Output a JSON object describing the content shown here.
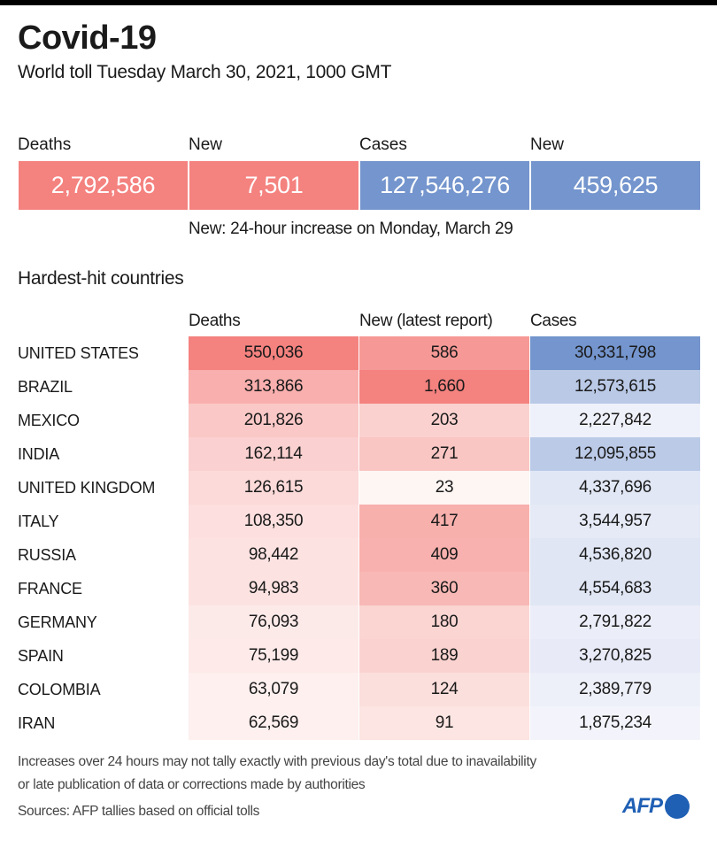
{
  "header": {
    "title": "Covid-19",
    "subtitle": "World toll Tuesday March 30, 2021, 1000 GMT"
  },
  "summary": {
    "items": [
      {
        "label": "Deaths",
        "value": "2,792,586",
        "color": "#f4827f"
      },
      {
        "label": "New",
        "value": "7,501",
        "color": "#f4827f"
      },
      {
        "label": "Cases",
        "value": "127,546,276",
        "color": "#7495cd"
      },
      {
        "label": "New",
        "value": "459,625",
        "color": "#7495cd"
      }
    ],
    "note": "New: 24-hour increase on Monday, March 29"
  },
  "section_title": "Hardest-hit countries",
  "chart_data": {
    "type": "table",
    "title": "Hardest-hit countries",
    "columns": [
      "Deaths",
      "New (latest report)",
      "Cases"
    ],
    "rows": [
      {
        "country": "UNITED STATES",
        "deaths": 550036,
        "new": 586,
        "cases": 30331798
      },
      {
        "country": "BRAZIL",
        "deaths": 313866,
        "new": 1660,
        "cases": 12573615
      },
      {
        "country": "MEXICO",
        "deaths": 201826,
        "new": 203,
        "cases": 2227842
      },
      {
        "country": "INDIA",
        "deaths": 162114,
        "new": 271,
        "cases": 12095855
      },
      {
        "country": "UNITED KINGDOM",
        "deaths": 126615,
        "new": 23,
        "cases": 4337696
      },
      {
        "country": "ITALY",
        "deaths": 108350,
        "new": 417,
        "cases": 3544957
      },
      {
        "country": "RUSSIA",
        "deaths": 98442,
        "new": 409,
        "cases": 4536820
      },
      {
        "country": "FRANCE",
        "deaths": 94983,
        "new": 360,
        "cases": 4554683
      },
      {
        "country": "GERMANY",
        "deaths": 76093,
        "new": 180,
        "cases": 2791822
      },
      {
        "country": "SPAIN",
        "deaths": 75199,
        "new": 189,
        "cases": 3270825
      },
      {
        "country": "COLOMBIA",
        "deaths": 63079,
        "new": 124,
        "cases": 2389779
      },
      {
        "country": "IRAN",
        "deaths": 62569,
        "new": 91,
        "cases": 1875234
      }
    ],
    "color_scale": {
      "deaths": {
        "high": "#f4827f",
        "low": "#fdf0ef"
      },
      "new": {
        "high": "#f4827f",
        "low": "#fdf6f3"
      },
      "cases": {
        "high": "#7495cd",
        "low": "#f3f4fb"
      }
    }
  },
  "footer": {
    "note_line1": "Increases over 24 hours may not tally exactly with previous day's total due to inavailability",
    "note_line2": "or late publication of data or corrections made by authorities",
    "sources": "Sources: AFP tallies based on official tolls",
    "logo_text": "AFP"
  }
}
